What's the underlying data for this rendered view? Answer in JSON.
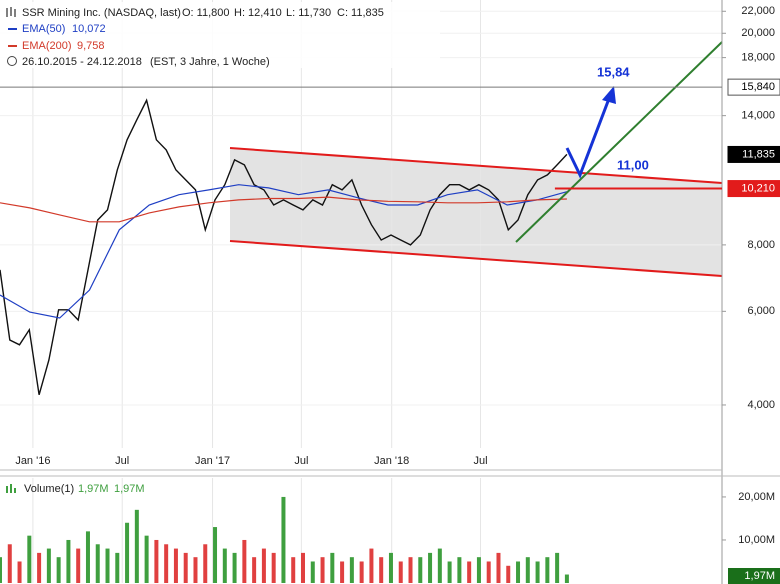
{
  "chart_data": [
    {
      "type": "line",
      "title": "SSR Mining Inc. (NASDAQ, last)",
      "quote": [
        "O: 11,800",
        "H: 12,410",
        "L: 11,730",
        "C: 11,835"
      ],
      "period": "26.10.2015 - 24.12.2018",
      "period_note": "(EST, 3 Jahre, 1 Woche)",
      "log_scale": true,
      "grid": true,
      "xlim": [
        "2015-10-26",
        "2019-11-05"
      ],
      "xticks": [
        {
          "value": "2016-01",
          "label": "Jan '16"
        },
        {
          "value": "2016-07",
          "label": "Jul"
        },
        {
          "value": "2017-01",
          "label": "Jan '17"
        },
        {
          "value": "2017-07",
          "label": "Jul"
        },
        {
          "value": "2018-01",
          "label": "Jan '18"
        },
        {
          "value": "2018-07",
          "label": "Jul"
        }
      ],
      "ylim": [
        3320,
        23100
      ],
      "yticks": [
        {
          "value": 4000,
          "label": "4,000"
        },
        {
          "value": 6000,
          "label": "6,000"
        },
        {
          "value": 8000,
          "label": "8,000"
        },
        {
          "value": 14000,
          "label": "14,000"
        },
        {
          "value": 18000,
          "label": "18,000"
        },
        {
          "value": 20000,
          "label": "20,000"
        },
        {
          "value": 22000,
          "label": "22,000"
        }
      ],
      "series": [
        {
          "color": "#111111",
          "values": [
            7180,
            5300,
            5190,
            5540,
            4180,
            4860,
            6040,
            6040,
            5780,
            7180,
            8910,
            9310,
            11070,
            12610,
            13750,
            14960,
            12610,
            12070,
            11070,
            10600,
            10150,
            8540,
            9720,
            10380,
            11560,
            11310,
            10380,
            10150,
            9510,
            9720,
            9510,
            9310,
            9720,
            9510,
            10380,
            10150,
            10600,
            9510,
            8730,
            8170,
            8350,
            8170,
            8000,
            8350,
            9310,
            9940,
            10380,
            10380,
            10150,
            10380,
            10150,
            9720,
            8540,
            8910,
            9940,
            10600,
            10830,
            11310,
            11835
          ]
        },
        {
          "name": "EMA(50)",
          "legend_value": "10,072",
          "color": "#1f3fc4",
          "values": [
            6440,
            5980,
            5830,
            6580,
            8540,
            9510,
            9940,
            10150,
            10380,
            10240,
            9940,
            10150,
            9810,
            9510,
            9510,
            9940,
            10150,
            9510,
            9720,
            10072
          ]
        },
        {
          "name": "EMA(200)",
          "legend_value": "9,758",
          "color": "#d23a2a",
          "values": [
            9600,
            9390,
            9110,
            8840,
            8840,
            9190,
            9430,
            9600,
            9720,
            9780,
            9780,
            9840,
            9720,
            9660,
            9640,
            9600,
            9600,
            9640,
            9720,
            9758
          ]
        }
      ],
      "levels": [
        {
          "value": 15840,
          "label": "15,840",
          "color": "#777777",
          "box": "#ffffff",
          "text_color": "#000000"
        },
        {
          "value": 11835,
          "label": "11,835",
          "color": null,
          "box": "#000000",
          "text_color": "#ffffff"
        },
        {
          "value": 10210,
          "label": "10,210",
          "color": "#e21b1b",
          "box": "#e21b1b",
          "text_color": "#ffffff"
        }
      ],
      "annotations": [
        "15,84",
        "11,00"
      ]
    },
    {
      "type": "bar",
      "title": "Volume(1)",
      "legend_values": [
        "1,97M",
        "1,97M"
      ],
      "last_label": "1,97M",
      "up_color": "#3f9f3f",
      "down_color": "#e04040",
      "ylim": [
        0,
        24400000
      ],
      "yticks": [
        {
          "value": 10000000,
          "label": "10,00M"
        },
        {
          "value": 20000000,
          "label": "20,00M"
        }
      ],
      "values": [
        6000000,
        9000000,
        5000000,
        11000000,
        7000000,
        8000000,
        6000000,
        10000000,
        8000000,
        12000000,
        9000000,
        8000000,
        7000000,
        14000000,
        17000000,
        11000000,
        10000000,
        9000000,
        8000000,
        7000000,
        6000000,
        9000000,
        13000000,
        8000000,
        7000000,
        10000000,
        6000000,
        8000000,
        7000000,
        20000000,
        6000000,
        7000000,
        5000000,
        6000000,
        7000000,
        5000000,
        6000000,
        5000000,
        8000000,
        6000000,
        7000000,
        5000000,
        6000000,
        6000000,
        7000000,
        8000000,
        5000000,
        6000000,
        5000000,
        6000000,
        5000000,
        7000000,
        4000000,
        5000000,
        6000000,
        5000000,
        6000000,
        7000000,
        1970000
      ]
    }
  ]
}
